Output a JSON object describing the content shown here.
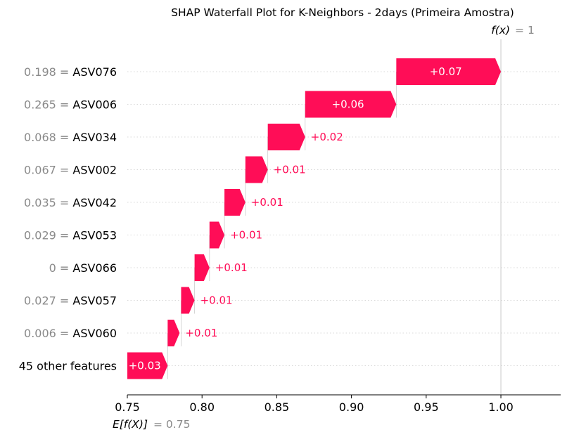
{
  "chart_data": {
    "type": "waterfall",
    "title": "SHAP Waterfall Plot for K-Neighbors - 2days (Primeira Amostra)",
    "base_value": 0.75,
    "base_label": "E[f(X)]",
    "base_value_text": "= 0.75",
    "output_value": 1.0,
    "output_label": "f(x)",
    "output_value_text": "= 1",
    "xlim": [
      0.75,
      1.04
    ],
    "xticks": [
      0.75,
      0.8,
      0.85,
      0.9,
      0.95,
      1.0
    ],
    "xtick_labels": [
      "0.75",
      "0.80",
      "0.85",
      "0.90",
      "0.95",
      "1.00"
    ],
    "features": [
      {
        "value_text": "0.198 =",
        "name": "ASV076",
        "start": 0.93,
        "shap": 0.07,
        "label": "+0.07"
      },
      {
        "value_text": "0.265 =",
        "name": "ASV006",
        "start": 0.869,
        "shap": 0.061,
        "label": "+0.06"
      },
      {
        "value_text": "0.068 =",
        "name": "ASV034",
        "start": 0.844,
        "shap": 0.025,
        "label": "+0.02"
      },
      {
        "value_text": "0.067 =",
        "name": "ASV002",
        "start": 0.829,
        "shap": 0.015,
        "label": "+0.01"
      },
      {
        "value_text": "0.035 =",
        "name": "ASV042",
        "start": 0.815,
        "shap": 0.014,
        "label": "+0.01"
      },
      {
        "value_text": "0.029 =",
        "name": "ASV053",
        "start": 0.805,
        "shap": 0.01,
        "label": "+0.01"
      },
      {
        "value_text": "0 =",
        "name": "ASV066",
        "start": 0.795,
        "shap": 0.01,
        "label": "+0.01"
      },
      {
        "value_text": "0.027 =",
        "name": "ASV057",
        "start": 0.786,
        "shap": 0.009,
        "label": "+0.01"
      },
      {
        "value_text": "0.006 =",
        "name": "ASV060",
        "start": 0.777,
        "shap": 0.008,
        "label": "+0.01"
      },
      {
        "value_text": "",
        "name": "45 other features",
        "start": 0.75,
        "shap": 0.027,
        "label": "+0.03"
      }
    ],
    "colors": {
      "positive": "#ff0d57",
      "inside_label": "#ffffff",
      "outside_label": "#ff0d57",
      "feature_value": "#8a8a8a",
      "grid": "#cccccc"
    }
  }
}
